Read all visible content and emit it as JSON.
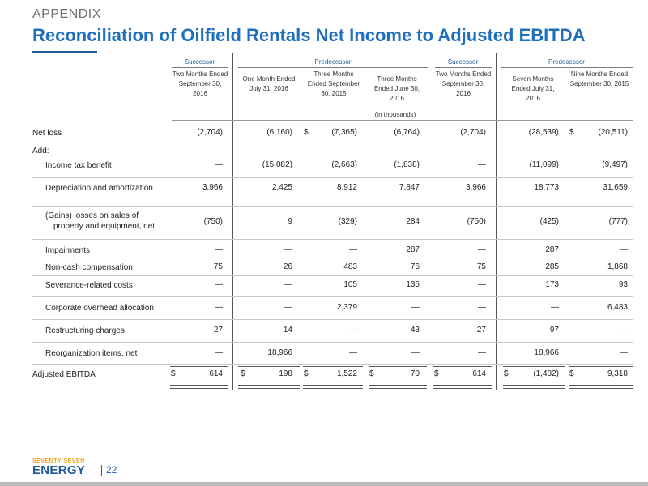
{
  "header": {
    "section": "APPENDIX",
    "title": "Reconciliation of Oilfield Rentals Net Income to Adjusted EBITDA"
  },
  "groups": [
    "Successor",
    "Predecessor",
    "Successor",
    "Predecessor"
  ],
  "columns": [
    "Two Months Ended September 30, 2016",
    "One Month Ended July 31, 2016",
    "Three Months Ended September 30, 2015",
    "Three Months Ended June 30, 2016",
    "Two Months Ended September 30, 2016",
    "Seven Months Ended July 31, 2016",
    "Nine Months Ended September 30, 2015"
  ],
  "units": "(in thousands)",
  "rows": [
    {
      "label": "Net loss",
      "values": [
        "(2,704)",
        "(6,160)",
        "(7,365)",
        "(6,764)",
        "(2,704)",
        "(28,539)",
        "(20,511)"
      ]
    },
    {
      "label": "Add:",
      "values": [
        "",
        "",
        "",
        "",
        "",
        "",
        ""
      ]
    },
    {
      "label": "Income tax benefit",
      "values": [
        "—",
        "(15,082)",
        "(2,663)",
        "(1,838)",
        "—",
        "(11,099)",
        "(9,497)"
      ]
    },
    {
      "label": "Depreciation and amortization",
      "values": [
        "3,966",
        "2,425",
        "8,912",
        "7,847",
        "3,966",
        "18,773",
        "31,659"
      ]
    },
    {
      "label": "(Gains) losses on sales of\nproperty and equipment, net",
      "values": [
        "(750)",
        "9",
        "(329)",
        "284",
        "(750)",
        "(425)",
        "(777)"
      ]
    },
    {
      "label": "Impairments",
      "values": [
        "—",
        "—",
        "—",
        "287",
        "—",
        "287",
        "—"
      ]
    },
    {
      "label": "Non-cash compensation",
      "values": [
        "75",
        "26",
        "483",
        "76",
        "75",
        "285",
        "1,868"
      ]
    },
    {
      "label": "Severance-related costs",
      "values": [
        "—",
        "—",
        "105",
        "135",
        "—",
        "173",
        "93"
      ]
    },
    {
      "label": "Corporate overhead allocation",
      "values": [
        "—",
        "—",
        "2,379",
        "—",
        "—",
        "—",
        "6,483"
      ]
    },
    {
      "label": "Restructuring charges",
      "values": [
        "27",
        "14",
        "—",
        "43",
        "27",
        "97",
        "—"
      ]
    },
    {
      "label": "Reorganization items, net",
      "values": [
        "—",
        "18,966",
        "—",
        "—",
        "—",
        "18,966",
        "—"
      ]
    },
    {
      "label": "Adjusted EBITDA",
      "values": [
        "614",
        "198",
        "1,522",
        "70",
        "614",
        "(1,482)",
        "9,318"
      ]
    }
  ],
  "currency_symbol": "$",
  "footer": {
    "logo_top": "SEVENTY SEVEN",
    "logo_main": "ENERGY",
    "page_number": "22"
  }
}
